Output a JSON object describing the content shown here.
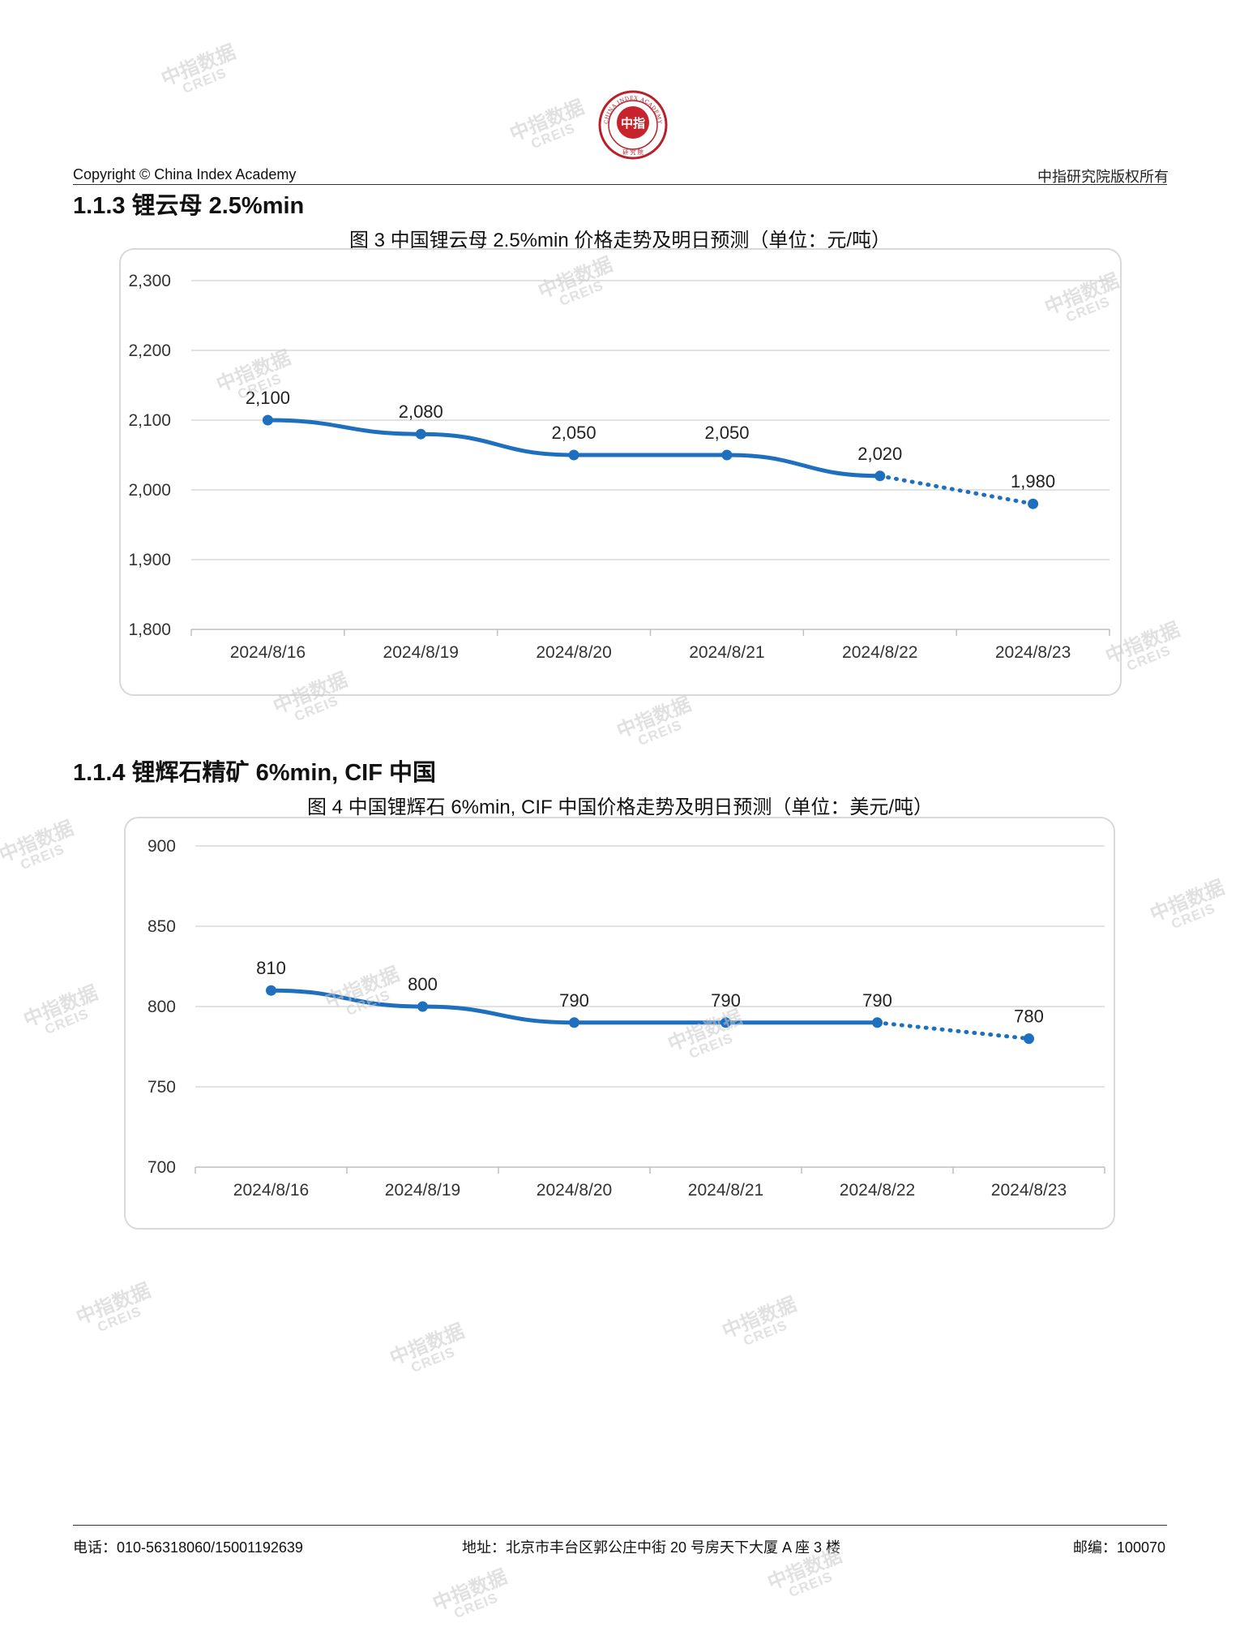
{
  "header": {
    "copyright": "Copyright © China Index Academy",
    "rights": "中指研究院版权所有",
    "logo_text": "中指",
    "logo_ring_text": "CHINA INDEX ACADEMY",
    "logo_bottom_text": "研 究 院"
  },
  "watermark": {
    "cn": "中指数据",
    "en": "CREIS"
  },
  "section1": {
    "title": "1.1.3 锂云母 2.5%min",
    "figure_title": "图 3 中国锂云母 2.5%min 价格走势及明日预测（单位：元/吨）"
  },
  "section2": {
    "title": "1.1.4 锂辉石精矿 6%min, CIF 中国",
    "figure_title": "图 4 中国锂辉石 6%min, CIF 中国价格走势及明日预测（单位：美元/吨）"
  },
  "chart_data": [
    {
      "type": "line",
      "categories": [
        "2024/8/16",
        "2024/8/19",
        "2024/8/20",
        "2024/8/21",
        "2024/8/22",
        "2024/8/23"
      ],
      "values": [
        2100,
        2080,
        2050,
        2050,
        2020,
        1980
      ],
      "data_labels": [
        "2,100",
        "2,080",
        "2,050",
        "2,050",
        "2,020",
        "1,980"
      ],
      "forecast_from_index": 4,
      "ylim": [
        1800,
        2300
      ],
      "yticks": [
        1800,
        1900,
        2000,
        2100,
        2200,
        2300
      ],
      "ytick_labels": [
        "1,800",
        "1,900",
        "2,000",
        "2,100",
        "2,200",
        "2,300"
      ],
      "grid": true,
      "color": "#1f6fbf"
    },
    {
      "type": "line",
      "categories": [
        "2024/8/16",
        "2024/8/19",
        "2024/8/20",
        "2024/8/21",
        "2024/8/22",
        "2024/8/23"
      ],
      "values": [
        810,
        800,
        790,
        790,
        790,
        780
      ],
      "data_labels": [
        "810",
        "800",
        "790",
        "790",
        "790",
        "780"
      ],
      "forecast_from_index": 4,
      "ylim": [
        700,
        900
      ],
      "yticks": [
        700,
        750,
        800,
        850,
        900
      ],
      "ytick_labels": [
        "700",
        "750",
        "800",
        "850",
        "900"
      ],
      "grid": true,
      "color": "#1f6fbf"
    }
  ],
  "footer": {
    "phone": "电话：010-56318060/15001192639",
    "address": "地址：北京市丰台区郭公庄中街 20 号房天下大厦 A 座 3 楼",
    "postcode": "邮编：100070"
  }
}
